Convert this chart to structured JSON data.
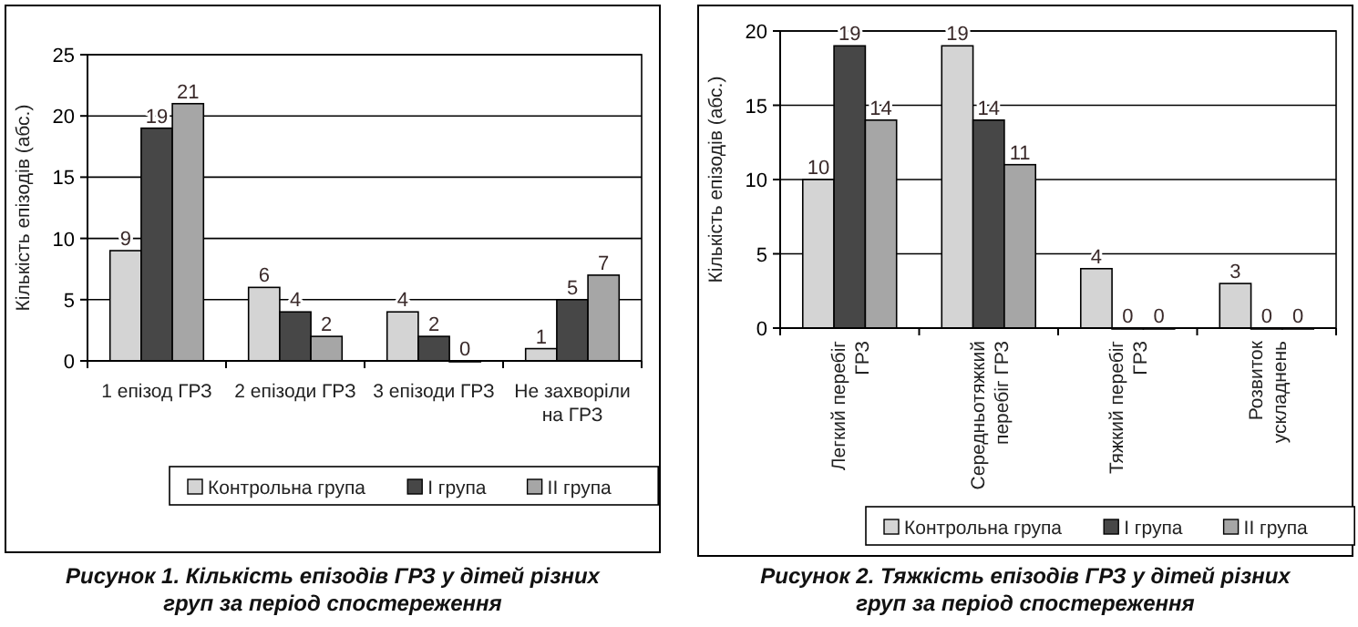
{
  "chart_data": [
    {
      "type": "bar",
      "title": "Рисунок 1. Кількість епізодів ГРЗ у дітей різних груп за період спостереження",
      "ylabel": "Кількість епізодів (абс.)",
      "categories": [
        "1 епізод ГРЗ",
        "2 епізоди ГРЗ",
        "3 епізоди ГРЗ",
        "Не захворіли на ГРЗ"
      ],
      "series": [
        {
          "name": "Контрольна група",
          "color": "#d4d4d4",
          "values": [
            9,
            6,
            4,
            1
          ]
        },
        {
          "name": "I група",
          "color": "#474747",
          "values": [
            19,
            4,
            2,
            5
          ]
        },
        {
          "name": "II група",
          "color": "#a6a6a6",
          "values": [
            21,
            2,
            0,
            7
          ]
        }
      ],
      "ylim": [
        0,
        25
      ],
      "yticks": [
        0,
        5,
        10,
        15,
        20,
        25
      ],
      "grid": "y",
      "legend": "bottom",
      "data_labels": true
    },
    {
      "type": "bar",
      "title": "Рисунок 2. Тяжкість епізодів ГРЗ у дітей різних груп за період спостереження",
      "ylabel": "Кількість епізодів (абс.)",
      "categories": [
        "Легкий перебіг ГРЗ",
        "Середньотяжкий перебіг ГРЗ",
        "Тяжкий перебіг ГРЗ",
        "Розвиток ускладнень"
      ],
      "series": [
        {
          "name": "Контрольна група",
          "color": "#d4d4d4",
          "values": [
            10,
            19,
            4,
            3
          ]
        },
        {
          "name": "I група",
          "color": "#474747",
          "values": [
            19,
            14,
            0,
            0
          ]
        },
        {
          "name": "II група",
          "color": "#a6a6a6",
          "values": [
            14,
            11,
            0,
            0
          ]
        }
      ],
      "ylim": [
        0,
        20
      ],
      "yticks": [
        0,
        5,
        10,
        15,
        20
      ],
      "grid": "y",
      "legend": "bottom",
      "data_labels": true
    }
  ]
}
